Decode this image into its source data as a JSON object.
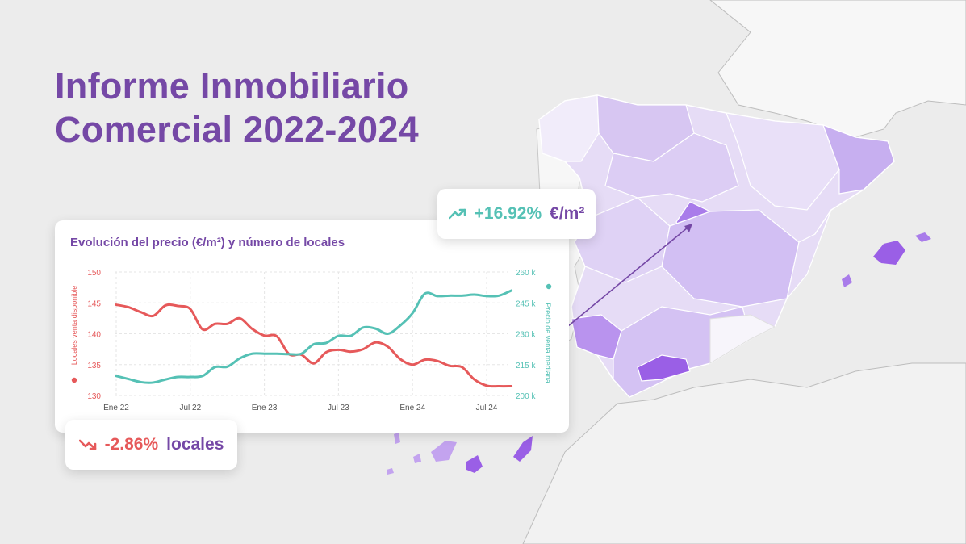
{
  "header": {
    "title_line1": "Informe Inmobiliario",
    "title_line2": "Comercial 2022-2024"
  },
  "colors": {
    "purple": "#7548a6",
    "teal": "#55c1b5",
    "red": "#e6595a",
    "map_light": "#e4dbf6",
    "map_strong": "#9a5fe6"
  },
  "badges": {
    "price": {
      "icon": "trend-up-icon",
      "value": "+16.92%",
      "unit": "€/m²"
    },
    "stores": {
      "icon": "trend-down-icon",
      "value": "-2.86%",
      "unit": "locales"
    }
  },
  "chart_data": {
    "type": "line",
    "title": "Evolución del precio  (€/m²) y número de locales",
    "categories": [
      "Ene 22",
      "Jul 22",
      "Ene 23",
      "Jul 23",
      "Ene 24",
      "Jul 24"
    ],
    "x_ticks_month_index": [
      0,
      6,
      12,
      18,
      24,
      30
    ],
    "grid": true,
    "legend": "side-axis-titles",
    "y_left": {
      "label": "Locales venta disponible",
      "ticks": [
        150,
        145,
        140,
        135,
        130
      ],
      "range": [
        130,
        150
      ],
      "color": "#e6595a"
    },
    "y_right": {
      "label": "Precio de venta mediana",
      "ticks": [
        "260 k",
        "245 k",
        "230 k",
        "215 k",
        "200 k"
      ],
      "range": [
        200,
        260
      ],
      "unit": "k",
      "color": "#55c1b5"
    },
    "series": [
      {
        "axis": "left",
        "color": "#e6595a",
        "x": [
          0,
          1,
          2,
          3,
          4,
          5,
          6,
          7,
          8,
          9,
          10,
          11,
          12,
          13,
          14,
          15,
          16,
          17,
          18,
          19,
          20,
          21,
          22,
          23,
          24,
          25,
          26,
          27,
          28,
          29,
          30,
          31,
          32
        ],
        "values": [
          144.7,
          144.3,
          143.5,
          142.9,
          144.6,
          144.5,
          144.0,
          140.7,
          141.6,
          141.6,
          142.5,
          140.8,
          139.7,
          139.6,
          136.7,
          136.6,
          135.2,
          137.0,
          137.4,
          137.1,
          137.5,
          138.6,
          137.9,
          135.9,
          135.0,
          135.8,
          135.6,
          134.8,
          134.6,
          132.6,
          131.6,
          131.5,
          131.5
        ]
      },
      {
        "axis": "right",
        "color": "#55c1b5",
        "x": [
          0,
          1,
          2,
          3,
          4,
          5,
          6,
          7,
          8,
          9,
          10,
          11,
          12,
          13,
          14,
          15,
          16,
          17,
          18,
          19,
          20,
          21,
          22,
          23,
          24,
          25,
          26,
          27,
          28,
          29,
          30,
          31,
          32
        ],
        "values": [
          209.5,
          208.0,
          206.5,
          206.3,
          207.8,
          209.0,
          209.0,
          209.5,
          213.8,
          214.0,
          218.0,
          220.3,
          220.3,
          220.3,
          220.1,
          220.3,
          224.9,
          225.5,
          229.0,
          229.0,
          233.0,
          232.5,
          230.0,
          234.0,
          240.0,
          249.5,
          248.3,
          248.5,
          248.5,
          249.0,
          248.3,
          248.5,
          251.0
        ]
      }
    ]
  }
}
